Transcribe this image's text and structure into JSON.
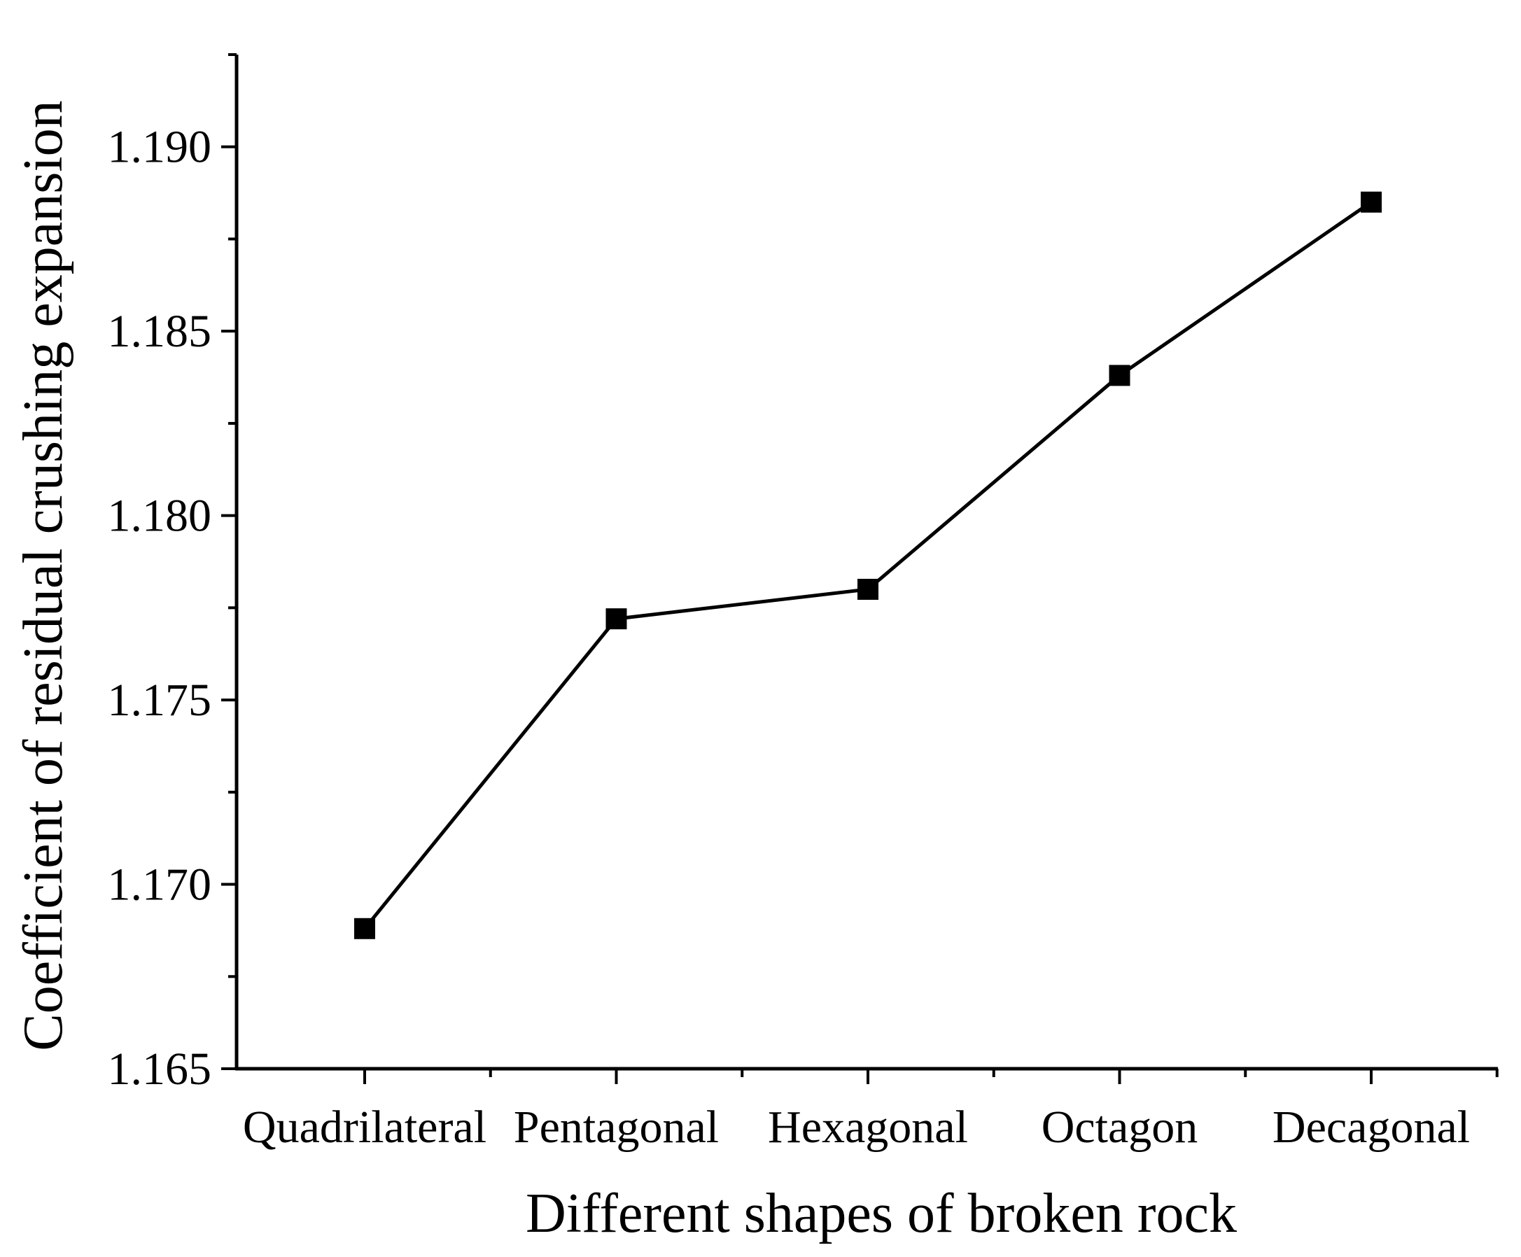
{
  "chart_data": {
    "type": "line",
    "title": "",
    "xlabel": "Different shapes of broken rock",
    "ylabel": "Coefficient of residual crushing expansion",
    "categories": [
      "Quadrilateral",
      "Pentagonal",
      "Hexagonal",
      "Octagon",
      "Decagonal"
    ],
    "series": [
      {
        "values": [
          1.1688,
          1.1772,
          1.178,
          1.1838,
          1.1885
        ]
      }
    ],
    "ylim": [
      1.165,
      1.1925
    ],
    "yticks": [
      "1.165",
      "1.170",
      "1.175",
      "1.180",
      "1.185",
      "1.190"
    ],
    "marker": "square",
    "grid": false,
    "legend": "none",
    "colors": {
      "line": "#000000",
      "marker": "#000000",
      "axis": "#000000"
    }
  }
}
